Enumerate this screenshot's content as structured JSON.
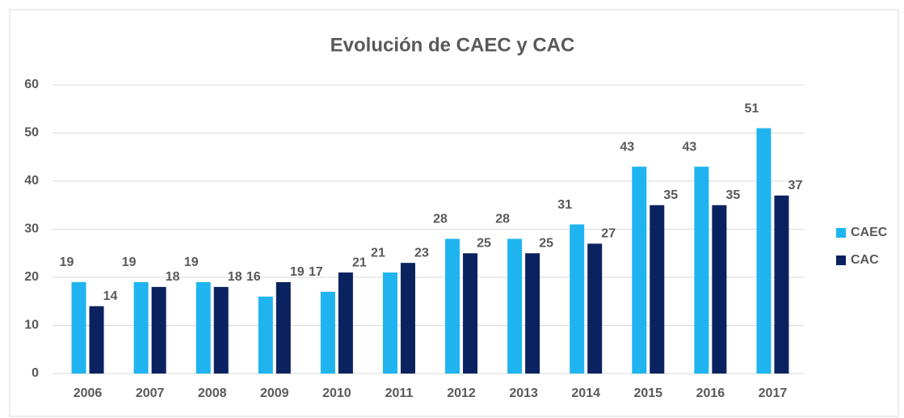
{
  "chart_data": {
    "type": "bar",
    "title": "Evolución de CAEC y CAC",
    "categories": [
      "2006",
      "2007",
      "2008",
      "2009",
      "2010",
      "2011",
      "2012",
      "2013",
      "2014",
      "2015",
      "2016",
      "2017"
    ],
    "series": [
      {
        "name": "CAEC",
        "color": "#1fb4f0",
        "values": [
          19,
          19,
          19,
          16,
          17,
          21,
          28,
          28,
          31,
          43,
          43,
          51
        ]
      },
      {
        "name": "CAC",
        "color": "#0b2260",
        "values": [
          14,
          18,
          18,
          19,
          21,
          23,
          25,
          25,
          27,
          35,
          35,
          37
        ]
      }
    ],
    "ylim": [
      0,
      60
    ],
    "yticks": [
      0,
      10,
      20,
      30,
      40,
      50,
      60
    ],
    "grid": true,
    "legend": "right"
  }
}
